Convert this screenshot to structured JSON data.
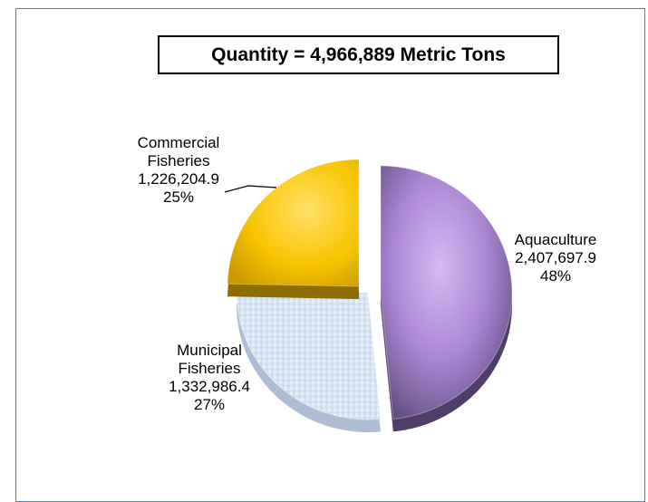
{
  "chart_data": {
    "type": "pie",
    "title": "Quantity = 4,966,889  Metric Tons",
    "slices": [
      {
        "name": "Aquaculture",
        "value": 2407697.9,
        "value_label": "2,407,697.9",
        "percent_label": "48%",
        "color": "#8e73b8"
      },
      {
        "name": "Municipal Fisheries",
        "name_lines": [
          "Municipal",
          "Fisheries"
        ],
        "value": 1332986.4,
        "value_label": "1,332,986.4",
        "percent_label": "27%",
        "color": "#d6e4f4"
      },
      {
        "name": "Commercial Fisheries",
        "name_lines": [
          "Commercial",
          "Fisheries"
        ],
        "value": 1226204.9,
        "value_label": "1,226,204.9",
        "percent_label": "25%",
        "color": "#f5c400"
      }
    ],
    "legend": "none"
  }
}
